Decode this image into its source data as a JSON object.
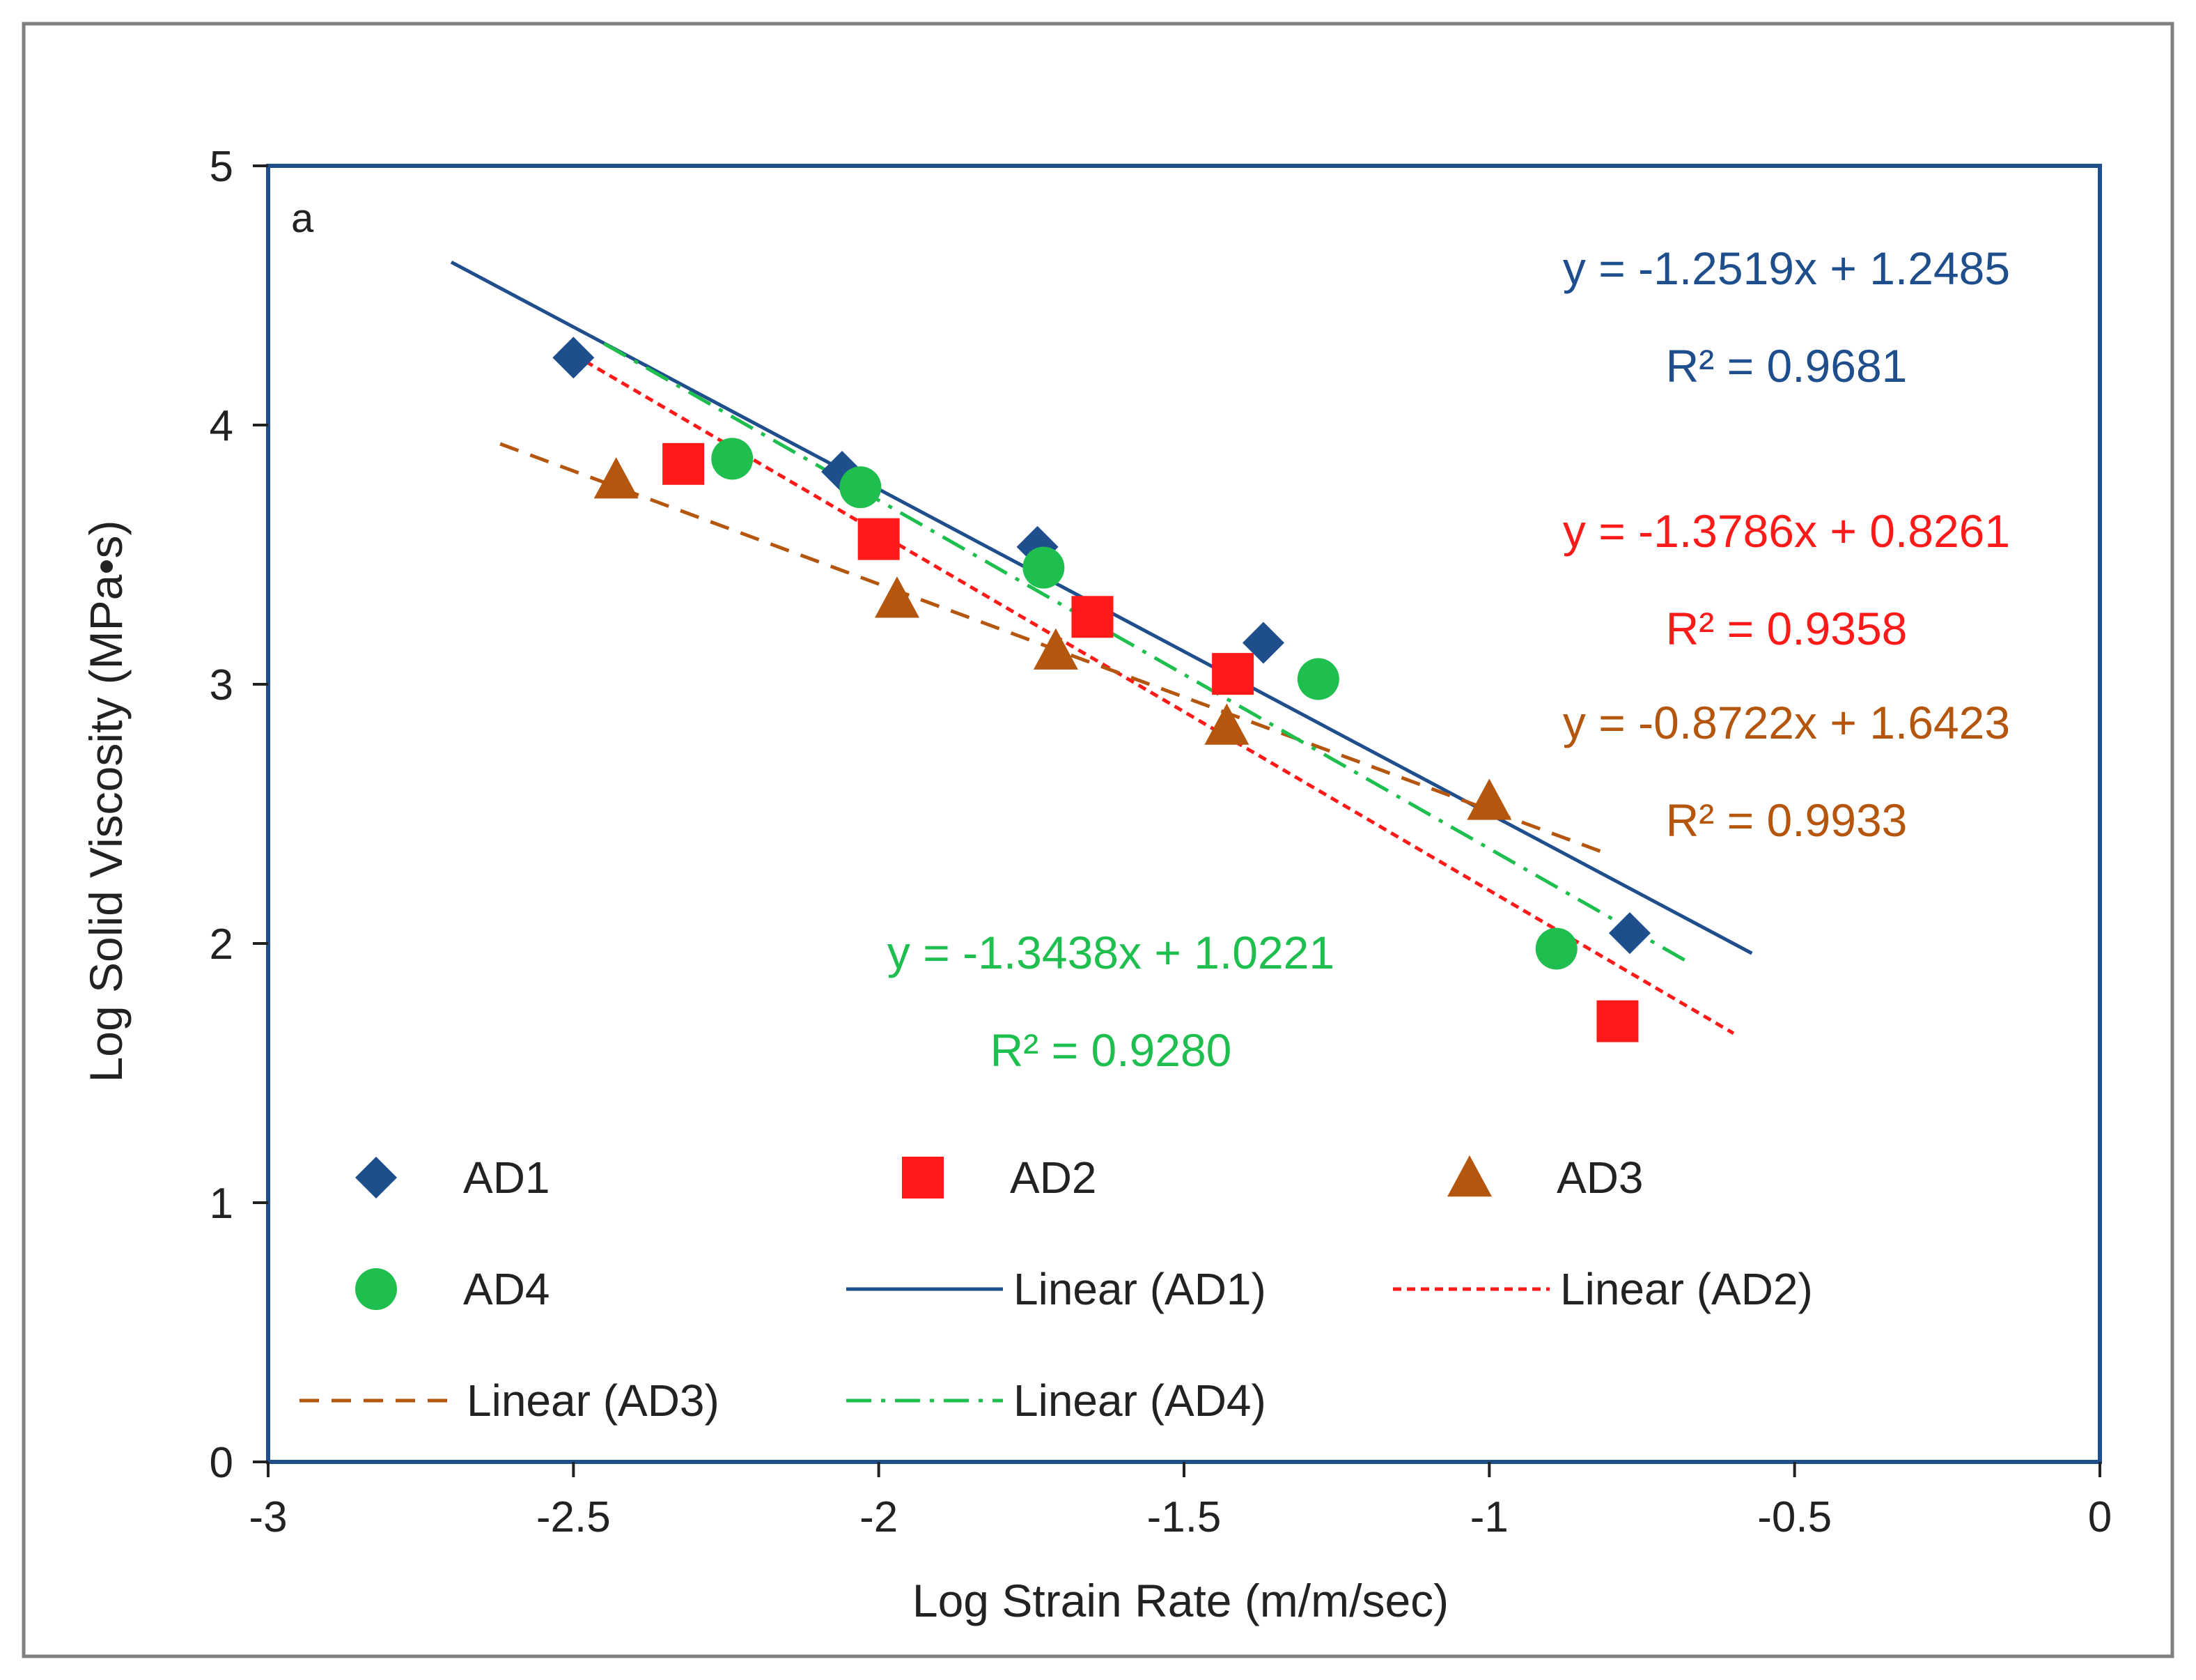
{
  "chart_data": {
    "type": "scatter",
    "panel_label": "a",
    "xlabel": "Log Strain Rate (m/m/sec)",
    "ylabel": "Log Solid Viscosity (MPa•s)",
    "xlim": [
      -3,
      0
    ],
    "ylim": [
      0,
      5
    ],
    "x_ticks": [
      -3,
      -2.5,
      -2,
      -1.5,
      -1,
      -0.5,
      0
    ],
    "x_tick_labels": [
      "-3",
      "-2.5",
      "-2",
      "-1.5",
      "-1",
      "-0.5",
      "0"
    ],
    "y_ticks": [
      0,
      1,
      2,
      3,
      4,
      5
    ],
    "y_tick_labels": [
      "0",
      "1",
      "2",
      "3",
      "4",
      "5"
    ],
    "grid": false,
    "legend_position": "bottom-inside",
    "series": [
      {
        "name": "AD1",
        "marker": "diamond",
        "color": "#1f4e8c",
        "points": [
          [
            -2.5,
            4.26
          ],
          [
            -2.06,
            3.82
          ],
          [
            -1.74,
            3.53
          ],
          [
            -1.37,
            3.16
          ],
          [
            -0.77,
            2.04
          ]
        ],
        "trend": {
          "name": "Linear (AD1)",
          "style": "solid",
          "slope": -1.2519,
          "intercept": 1.2485,
          "x_range": [
            -2.7,
            -0.57
          ],
          "equation": "y = -1.2519x + 1.2485",
          "r2": "R² = 0.9681"
        }
      },
      {
        "name": "AD2",
        "marker": "square",
        "color": "#ff1a1a",
        "points": [
          [
            -2.32,
            3.85
          ],
          [
            -2.0,
            3.56
          ],
          [
            -1.65,
            3.26
          ],
          [
            -1.42,
            3.04
          ],
          [
            -0.79,
            1.7
          ]
        ],
        "trend": {
          "name": "Linear (AD2)",
          "style": "dotted",
          "slope": -1.3786,
          "intercept": 0.8261,
          "x_range": [
            -2.5,
            -0.6
          ],
          "equation": "y = -1.3786x + 0.8261",
          "r2": "R² = 0.9358"
        }
      },
      {
        "name": "AD3",
        "marker": "triangle",
        "color": "#b5560f",
        "points": [
          [
            -2.43,
            3.79
          ],
          [
            -1.97,
            3.33
          ],
          [
            -1.71,
            3.13
          ],
          [
            -1.43,
            2.84
          ],
          [
            -1.0,
            2.55
          ]
        ],
        "trend": {
          "name": "Linear (AD3)",
          "style": "dashed",
          "slope": -0.8722,
          "intercept": 1.6423,
          "x_range": [
            -2.62,
            -0.8
          ],
          "equation": "y = -0.8722x + 1.6423",
          "r2": "R² = 0.9933"
        }
      },
      {
        "name": "AD4",
        "marker": "circle",
        "color": "#1fbf4f",
        "points": [
          [
            -2.24,
            3.87
          ],
          [
            -2.03,
            3.76
          ],
          [
            -1.73,
            3.45
          ],
          [
            -1.28,
            3.02
          ],
          [
            -0.89,
            1.98
          ]
        ],
        "trend": {
          "name": "Linear (AD4)",
          "style": "dashdot",
          "slope": -1.3438,
          "intercept": 1.0221,
          "x_range": [
            -2.45,
            -0.68
          ],
          "equation": "y = -1.3438x + 1.0221",
          "r2": "R² = 0.9280"
        }
      }
    ],
    "legend_items": [
      {
        "label": "AD1",
        "kind": "marker",
        "marker": "diamond",
        "color": "#1f4e8c"
      },
      {
        "label": "AD2",
        "kind": "marker",
        "marker": "square",
        "color": "#ff1a1a"
      },
      {
        "label": "AD3",
        "kind": "marker",
        "marker": "triangle",
        "color": "#b5560f"
      },
      {
        "label": "AD4",
        "kind": "marker",
        "marker": "circle",
        "color": "#1fbf4f"
      },
      {
        "label": "Linear (AD1)",
        "kind": "line",
        "style": "solid",
        "color": "#1f4e8c"
      },
      {
        "label": "Linear (AD2)",
        "kind": "line",
        "style": "dotted",
        "color": "#ff1a1a"
      },
      {
        "label": "Linear (AD3)",
        "kind": "line",
        "style": "dashed",
        "color": "#b5560f"
      },
      {
        "label": "Linear (AD4)",
        "kind": "line",
        "style": "dashdot",
        "color": "#1fbf4f"
      }
    ],
    "colors": {
      "axis_box": "#1f4e8c",
      "outer_frame": "#808080",
      "text": "#222222"
    }
  }
}
